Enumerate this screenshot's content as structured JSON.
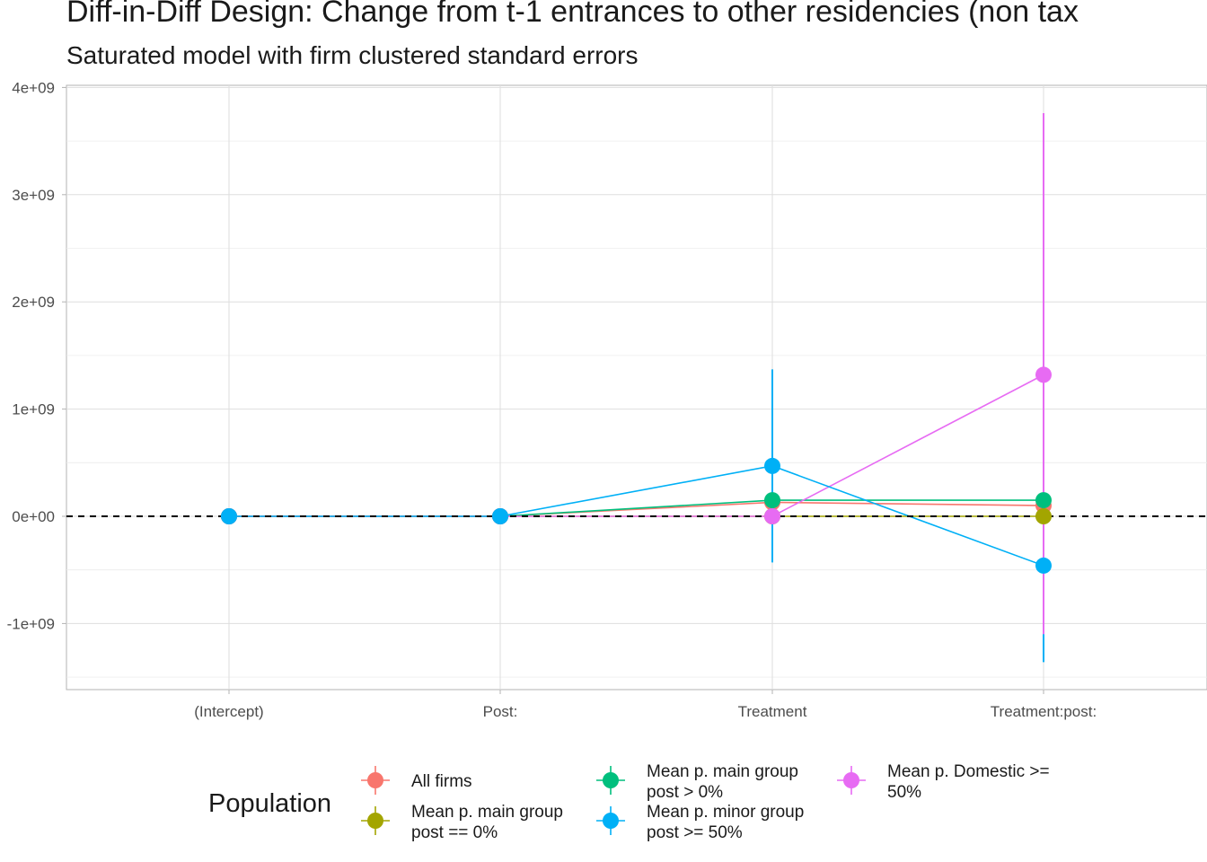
{
  "chart_data": {
    "type": "scatter",
    "title": "Diff-in-Diff Design: Change from t-1 entrances to other residencies (non tax",
    "subtitle": "Saturated model with firm clustered standard errors",
    "xlabel": "",
    "ylabel": "",
    "categories": [
      "(Intercept)",
      "Post:",
      "Treatment",
      "Treatment:post:"
    ],
    "ylim": [
      -1600000000.0,
      4000000000.0
    ],
    "y_ticks": [
      -1000000000.0,
      0,
      1000000000.0,
      2000000000.0,
      3000000000.0,
      4000000000.0
    ],
    "y_tick_labels": [
      "-1e+09",
      "0e+00",
      "1e+09",
      "2e+09",
      "3e+09",
      "4e+09"
    ],
    "reference_line": 0,
    "grid": true,
    "legend_title": "Population",
    "legend_position": "bottom",
    "series": [
      {
        "name": "All firms",
        "color": "#F8766D",
        "values": [
          0,
          0,
          130000000.0,
          100000000.0
        ],
        "lower": [
          0,
          0,
          130000000.0,
          100000000.0
        ],
        "upper": [
          0,
          0,
          130000000.0,
          100000000.0
        ]
      },
      {
        "name": "Mean p. main group post == 0%",
        "color": "#A3A500",
        "values": [
          0,
          0,
          0,
          0
        ],
        "lower": [
          0,
          0,
          0,
          0
        ],
        "upper": [
          0,
          0,
          0,
          0
        ]
      },
      {
        "name": "Mean p. main group post > 0%",
        "color": "#00BF7D",
        "values": [
          0,
          0,
          150000000.0,
          150000000.0
        ],
        "lower": [
          0,
          0,
          150000000.0,
          150000000.0
        ],
        "upper": [
          0,
          0,
          150000000.0,
          150000000.0
        ]
      },
      {
        "name": "Mean p. minor group post >= 50%",
        "color": "#00B0F6",
        "values": [
          0,
          0,
          470000000.0,
          -460000000.0
        ],
        "lower": [
          0,
          0,
          -430000000.0,
          -1360000000.0
        ],
        "upper": [
          0,
          0,
          1370000000.0,
          -1100000000.0
        ]
      },
      {
        "name": "Mean p. Domestic >= 50%",
        "color": "#E76BF3",
        "values": [
          0,
          0,
          0,
          1320000000.0
        ],
        "lower": [
          0,
          0,
          0,
          -1100000000.0
        ],
        "upper": [
          0,
          0,
          0,
          3760000000.0
        ]
      }
    ],
    "legend_entries": [
      {
        "line1": "All firms",
        "line2": ""
      },
      {
        "line1": "Mean p. main group",
        "line2": "post == 0%"
      },
      {
        "line1": "Mean p. main group",
        "line2": "post > 0%"
      },
      {
        "line1": "Mean p. minor group",
        "line2": "post >= 50%"
      },
      {
        "line1": "Mean p. Domestic >=",
        "line2": "50%"
      }
    ]
  }
}
